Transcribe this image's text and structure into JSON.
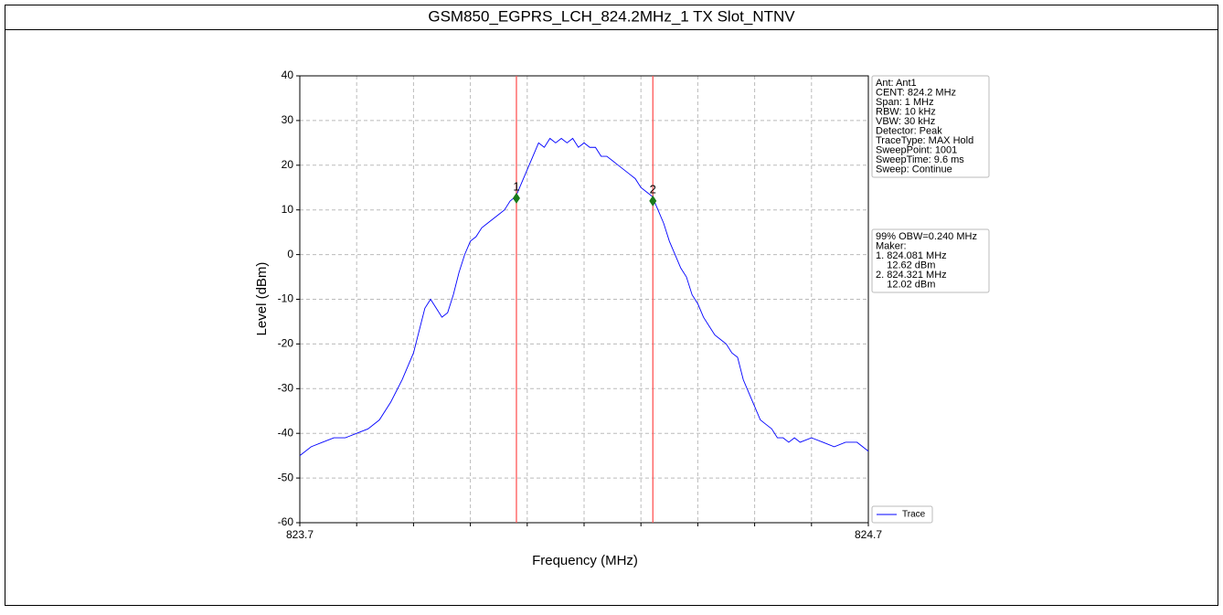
{
  "chart_data": {
    "type": "line",
    "title": "GSM850_EGPRS_LCH_824.2MHz_1 TX Slot_NTNV",
    "x_label": "Frequency (MHz)",
    "y_label": "Level (dBm)",
    "xlim": [
      823.7,
      824.7
    ],
    "xticks": [
      823.7,
      824.7
    ],
    "xminor_ticks": [
      823.8,
      823.9,
      824.0,
      824.1,
      824.2,
      824.3,
      824.4,
      824.5,
      824.6
    ],
    "ylim": [
      -60,
      40
    ],
    "yticks": [
      -60,
      -50,
      -40,
      -30,
      -20,
      -10,
      0,
      10,
      20,
      30,
      40
    ],
    "grid": true,
    "legend": "lower right",
    "x": [
      823.7,
      823.72,
      823.74,
      823.76,
      823.78,
      823.8,
      823.82,
      823.84,
      823.86,
      823.88,
      823.9,
      823.91,
      823.92,
      823.93,
      823.94,
      823.95,
      823.96,
      823.97,
      823.98,
      823.99,
      824.0,
      824.01,
      824.02,
      824.03,
      824.04,
      824.05,
      824.06,
      824.07,
      824.08,
      824.09,
      824.1,
      824.11,
      824.12,
      824.13,
      824.14,
      824.15,
      824.16,
      824.17,
      824.18,
      824.19,
      824.2,
      824.21,
      824.22,
      824.23,
      824.24,
      824.25,
      824.26,
      824.27,
      824.28,
      824.29,
      824.3,
      824.31,
      824.32,
      824.33,
      824.34,
      824.35,
      824.36,
      824.37,
      824.38,
      824.39,
      824.4,
      824.41,
      824.42,
      824.43,
      824.44,
      824.45,
      824.46,
      824.47,
      824.48,
      824.49,
      824.5,
      824.51,
      824.52,
      824.53,
      824.54,
      824.55,
      824.56,
      824.57,
      824.58,
      824.6,
      824.62,
      824.64,
      824.66,
      824.68,
      824.7
    ],
    "series": [
      {
        "name": "Trace",
        "color": "#0000ff",
        "values": [
          -45,
          -43,
          -42,
          -41,
          -41,
          -40,
          -39,
          -37,
          -33,
          -28,
          -22,
          -17,
          -12,
          -10,
          -12,
          -14,
          -13,
          -9,
          -4,
          0,
          3,
          4,
          6,
          7,
          8,
          9,
          10,
          12,
          13,
          16,
          19,
          22,
          25,
          24,
          26,
          25,
          26,
          25,
          26,
          24,
          25,
          24,
          24,
          22,
          22,
          21,
          20,
          19,
          18,
          17,
          15,
          14,
          13,
          10,
          7,
          3,
          0,
          -3,
          -5,
          -9,
          -11,
          -14,
          -16,
          -18,
          -19,
          -20,
          -22,
          -23,
          -28,
          -31,
          -34,
          -37,
          -38,
          -39,
          -41,
          -41,
          -42,
          -41,
          -42,
          -41,
          -42,
          -43,
          -42,
          -42,
          -44
        ]
      }
    ],
    "marker_line_color": "#ff5555",
    "marker_color": "#1a7a1a",
    "markers": [
      {
        "label": "1",
        "x": 824.081,
        "y": 12.62
      },
      {
        "label": "2",
        "x": 824.321,
        "y": 12.02
      }
    ],
    "info_lines": [
      "Ant: Ant1",
      "CENT: 824.2 MHz",
      "Span: 1 MHz",
      "RBW: 10 kHz",
      "VBW: 30 kHz",
      "Detector: Peak",
      "TraceType: MAX Hold",
      "SweepPoint: 1001",
      "SweepTime: 9.6 ms",
      "Sweep: Continue"
    ],
    "obw_lines": [
      "99% OBW=0.240 MHz",
      "Maker:",
      "1. 824.081 MHz",
      "    12.62 dBm",
      "2. 824.321 MHz",
      "    12.02 dBm"
    ]
  }
}
